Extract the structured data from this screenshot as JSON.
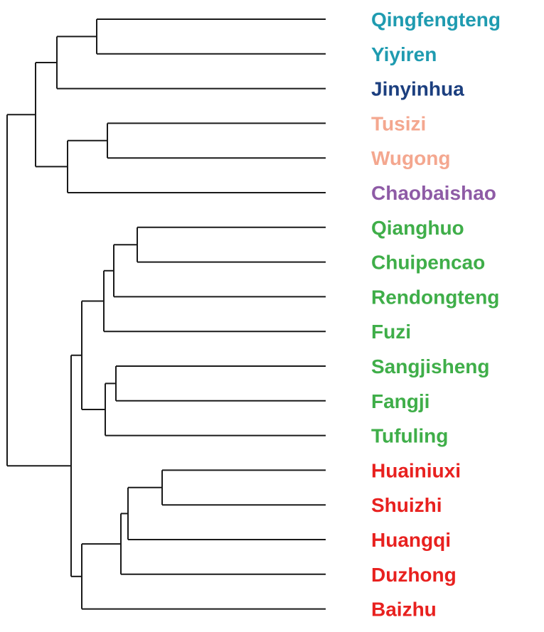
{
  "colors": {
    "teal": "#1f9bb0",
    "navy": "#1c3f7f",
    "peach": "#f4a78f",
    "purple": "#8e5ba6",
    "green": "#3fae49",
    "red": "#e8211f",
    "branch": "#1a1a1a"
  },
  "leaves": [
    {
      "label": "Qingfengteng",
      "color": "teal"
    },
    {
      "label": "Yiyiren",
      "color": "teal"
    },
    {
      "label": "Jinyinhua",
      "color": "navy"
    },
    {
      "label": "Tusizi",
      "color": "peach"
    },
    {
      "label": "Wugong",
      "color": "peach"
    },
    {
      "label": "Chaobaishao",
      "color": "purple"
    },
    {
      "label": "Qianghuo",
      "color": "green"
    },
    {
      "label": "Chuipencao",
      "color": "green"
    },
    {
      "label": "Rendongteng",
      "color": "green"
    },
    {
      "label": "Fuzi",
      "color": "green"
    },
    {
      "label": "Sangjisheng",
      "color": "green"
    },
    {
      "label": "Fangji",
      "color": "green"
    },
    {
      "label": "Tufuling",
      "color": "green"
    },
    {
      "label": "Huainiuxi",
      "color": "red"
    },
    {
      "label": "Shuizhi",
      "color": "red"
    },
    {
      "label": "Huangqi",
      "color": "red"
    },
    {
      "label": "Duzhong",
      "color": "red"
    },
    {
      "label": "Baizhu",
      "color": "red"
    }
  ],
  "tree": {
    "children": [
      {
        "children": [
          {
            "children": [
              {
                "children": [
                  {
                    "leaf": 0
                  },
                  {
                    "leaf": 1
                  }
                ]
              },
              {
                "leaf": 2
              }
            ]
          },
          {
            "children": [
              {
                "children": [
                  {
                    "leaf": 3
                  },
                  {
                    "leaf": 4
                  }
                ]
              },
              {
                "leaf": 5
              }
            ]
          }
        ]
      },
      {
        "children": [
          {
            "children": [
              {
                "children": [
                  {
                    "children": [
                      {
                        "children": [
                          {
                            "leaf": 6
                          },
                          {
                            "leaf": 7
                          }
                        ]
                      },
                      {
                        "leaf": 8
                      }
                    ]
                  },
                  {
                    "leaf": 9
                  }
                ]
              },
              {
                "children": [
                  {
                    "children": [
                      {
                        "leaf": 10
                      },
                      {
                        "leaf": 11
                      }
                    ]
                  },
                  {
                    "leaf": 12
                  }
                ]
              }
            ]
          },
          {
            "children": [
              {
                "children": [
                  {
                    "children": [
                      {
                        "children": [
                          {
                            "leaf": 13
                          },
                          {
                            "leaf": 14
                          }
                        ]
                      },
                      {
                        "leaf": 15
                      }
                    ]
                  },
                  {
                    "leaf": 16
                  }
                ]
              },
              {
                "leaf": 17
              }
            ]
          }
        ]
      }
    ]
  }
}
